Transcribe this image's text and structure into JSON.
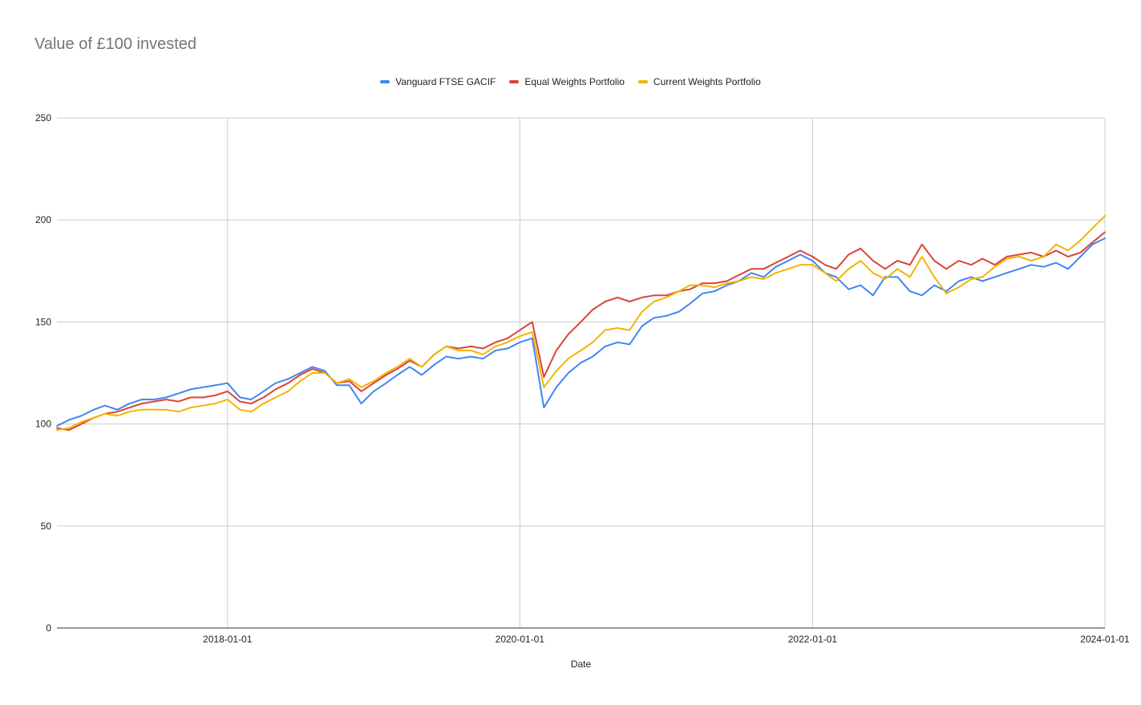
{
  "chart_data": {
    "type": "line",
    "title": "Value of £100 invested",
    "xlabel": "Date",
    "ylabel": "",
    "ylim": [
      0,
      250
    ],
    "yticks": [
      0,
      50,
      100,
      150,
      200,
      250
    ],
    "xlim": [
      "2016-11-01",
      "2024-01-01"
    ],
    "xticks": [
      "2018-01-01",
      "2020-01-01",
      "2022-01-01",
      "2024-01-01"
    ],
    "grid": true,
    "legend_position": "top",
    "series": [
      {
        "name": "Vanguard FTSE GACIF",
        "color": "#4285f4",
        "points": [
          [
            "2016-11-01",
            99
          ],
          [
            "2016-12-01",
            102
          ],
          [
            "2017-01-01",
            104
          ],
          [
            "2017-02-01",
            107
          ],
          [
            "2017-03-01",
            109
          ],
          [
            "2017-04-01",
            107
          ],
          [
            "2017-05-01",
            110
          ],
          [
            "2017-06-01",
            112
          ],
          [
            "2017-07-01",
            112
          ],
          [
            "2017-08-01",
            113
          ],
          [
            "2017-09-01",
            115
          ],
          [
            "2017-10-01",
            117
          ],
          [
            "2017-11-01",
            118
          ],
          [
            "2017-12-01",
            119
          ],
          [
            "2018-01-01",
            120
          ],
          [
            "2018-02-01",
            113
          ],
          [
            "2018-03-01",
            112
          ],
          [
            "2018-04-01",
            116
          ],
          [
            "2018-05-01",
            120
          ],
          [
            "2018-06-01",
            122
          ],
          [
            "2018-07-01",
            125
          ],
          [
            "2018-08-01",
            128
          ],
          [
            "2018-09-01",
            126
          ],
          [
            "2018-10-01",
            119
          ],
          [
            "2018-11-01",
            119
          ],
          [
            "2018-12-01",
            110
          ],
          [
            "2019-01-01",
            116
          ],
          [
            "2019-02-01",
            120
          ],
          [
            "2019-03-01",
            124
          ],
          [
            "2019-04-01",
            128
          ],
          [
            "2019-05-01",
            124
          ],
          [
            "2019-06-01",
            129
          ],
          [
            "2019-07-01",
            133
          ],
          [
            "2019-08-01",
            132
          ],
          [
            "2019-09-01",
            133
          ],
          [
            "2019-10-01",
            132
          ],
          [
            "2019-11-01",
            136
          ],
          [
            "2019-12-01",
            137
          ],
          [
            "2020-01-01",
            140
          ],
          [
            "2020-02-01",
            142
          ],
          [
            "2020-03-01",
            108
          ],
          [
            "2020-04-01",
            118
          ],
          [
            "2020-05-01",
            125
          ],
          [
            "2020-06-01",
            130
          ],
          [
            "2020-07-01",
            133
          ],
          [
            "2020-08-01",
            138
          ],
          [
            "2020-09-01",
            140
          ],
          [
            "2020-10-01",
            139
          ],
          [
            "2020-11-01",
            148
          ],
          [
            "2020-12-01",
            152
          ],
          [
            "2021-01-01",
            153
          ],
          [
            "2021-02-01",
            155
          ],
          [
            "2021-03-01",
            159
          ],
          [
            "2021-04-01",
            164
          ],
          [
            "2021-05-01",
            165
          ],
          [
            "2021-06-01",
            168
          ],
          [
            "2021-07-01",
            170
          ],
          [
            "2021-08-01",
            174
          ],
          [
            "2021-09-01",
            172
          ],
          [
            "2021-10-01",
            177
          ],
          [
            "2021-11-01",
            180
          ],
          [
            "2021-12-01",
            183
          ],
          [
            "2022-01-01",
            180
          ],
          [
            "2022-02-01",
            174
          ],
          [
            "2022-03-01",
            172
          ],
          [
            "2022-04-01",
            166
          ],
          [
            "2022-05-01",
            168
          ],
          [
            "2022-06-01",
            163
          ],
          [
            "2022-07-01",
            172
          ],
          [
            "2022-08-01",
            172
          ],
          [
            "2022-09-01",
            165
          ],
          [
            "2022-10-01",
            163
          ],
          [
            "2022-11-01",
            168
          ],
          [
            "2022-12-01",
            165
          ],
          [
            "2023-01-01",
            170
          ],
          [
            "2023-02-01",
            172
          ],
          [
            "2023-03-01",
            170
          ],
          [
            "2023-04-01",
            172
          ],
          [
            "2023-05-01",
            174
          ],
          [
            "2023-06-01",
            176
          ],
          [
            "2023-07-01",
            178
          ],
          [
            "2023-08-01",
            177
          ],
          [
            "2023-09-01",
            179
          ],
          [
            "2023-10-01",
            176
          ],
          [
            "2023-11-01",
            182
          ],
          [
            "2023-12-01",
            188
          ],
          [
            "2024-01-01",
            191
          ]
        ]
      },
      {
        "name": "Equal Weights Portfolio",
        "color": "#db4437",
        "points": [
          [
            "2016-11-01",
            98
          ],
          [
            "2016-12-01",
            97
          ],
          [
            "2017-01-01",
            100
          ],
          [
            "2017-02-01",
            103
          ],
          [
            "2017-03-01",
            105
          ],
          [
            "2017-04-01",
            106
          ],
          [
            "2017-05-01",
            108
          ],
          [
            "2017-06-01",
            110
          ],
          [
            "2017-07-01",
            111
          ],
          [
            "2017-08-01",
            112
          ],
          [
            "2017-09-01",
            111
          ],
          [
            "2017-10-01",
            113
          ],
          [
            "2017-11-01",
            113
          ],
          [
            "2017-12-01",
            114
          ],
          [
            "2018-01-01",
            116
          ],
          [
            "2018-02-01",
            111
          ],
          [
            "2018-03-01",
            110
          ],
          [
            "2018-04-01",
            113
          ],
          [
            "2018-05-01",
            117
          ],
          [
            "2018-06-01",
            120
          ],
          [
            "2018-07-01",
            124
          ],
          [
            "2018-08-01",
            127
          ],
          [
            "2018-09-01",
            125
          ],
          [
            "2018-10-01",
            120
          ],
          [
            "2018-11-01",
            121
          ],
          [
            "2018-12-01",
            116
          ],
          [
            "2019-01-01",
            120
          ],
          [
            "2019-02-01",
            124
          ],
          [
            "2019-03-01",
            127
          ],
          [
            "2019-04-01",
            131
          ],
          [
            "2019-05-01",
            128
          ],
          [
            "2019-06-01",
            134
          ],
          [
            "2019-07-01",
            138
          ],
          [
            "2019-08-01",
            137
          ],
          [
            "2019-09-01",
            138
          ],
          [
            "2019-10-01",
            137
          ],
          [
            "2019-11-01",
            140
          ],
          [
            "2019-12-01",
            142
          ],
          [
            "2020-01-01",
            146
          ],
          [
            "2020-02-01",
            150
          ],
          [
            "2020-03-01",
            123
          ],
          [
            "2020-04-01",
            136
          ],
          [
            "2020-05-01",
            144
          ],
          [
            "2020-06-01",
            150
          ],
          [
            "2020-07-01",
            156
          ],
          [
            "2020-08-01",
            160
          ],
          [
            "2020-09-01",
            162
          ],
          [
            "2020-10-01",
            160
          ],
          [
            "2020-11-01",
            162
          ],
          [
            "2020-12-01",
            163
          ],
          [
            "2021-01-01",
            163
          ],
          [
            "2021-02-01",
            165
          ],
          [
            "2021-03-01",
            166
          ],
          [
            "2021-04-01",
            169
          ],
          [
            "2021-05-01",
            169
          ],
          [
            "2021-06-01",
            170
          ],
          [
            "2021-07-01",
            173
          ],
          [
            "2021-08-01",
            176
          ],
          [
            "2021-09-01",
            176
          ],
          [
            "2021-10-01",
            179
          ],
          [
            "2021-11-01",
            182
          ],
          [
            "2021-12-01",
            185
          ],
          [
            "2022-01-01",
            182
          ],
          [
            "2022-02-01",
            178
          ],
          [
            "2022-03-01",
            176
          ],
          [
            "2022-04-01",
            183
          ],
          [
            "2022-05-01",
            186
          ],
          [
            "2022-06-01",
            180
          ],
          [
            "2022-07-01",
            176
          ],
          [
            "2022-08-01",
            180
          ],
          [
            "2022-09-01",
            178
          ],
          [
            "2022-10-01",
            188
          ],
          [
            "2022-11-01",
            180
          ],
          [
            "2022-12-01",
            176
          ],
          [
            "2023-01-01",
            180
          ],
          [
            "2023-02-01",
            178
          ],
          [
            "2023-03-01",
            181
          ],
          [
            "2023-04-01",
            178
          ],
          [
            "2023-05-01",
            182
          ],
          [
            "2023-06-01",
            183
          ],
          [
            "2023-07-01",
            184
          ],
          [
            "2023-08-01",
            182
          ],
          [
            "2023-09-01",
            185
          ],
          [
            "2023-10-01",
            182
          ],
          [
            "2023-11-01",
            184
          ],
          [
            "2023-12-01",
            189
          ],
          [
            "2024-01-01",
            194
          ]
        ]
      },
      {
        "name": "Current Weights Portfolio",
        "color": "#f4b400",
        "points": [
          [
            "2016-11-01",
            97
          ],
          [
            "2016-12-01",
            98
          ],
          [
            "2017-01-01",
            101
          ],
          [
            "2017-02-01",
            103
          ],
          [
            "2017-03-01",
            105
          ],
          [
            "2017-04-01",
            104
          ],
          [
            "2017-05-01",
            106
          ],
          [
            "2017-06-01",
            107
          ],
          [
            "2017-07-01",
            107
          ],
          [
            "2017-08-01",
            107
          ],
          [
            "2017-09-01",
            106
          ],
          [
            "2017-10-01",
            108
          ],
          [
            "2017-11-01",
            109
          ],
          [
            "2017-12-01",
            110
          ],
          [
            "2018-01-01",
            112
          ],
          [
            "2018-02-01",
            107
          ],
          [
            "2018-03-01",
            106
          ],
          [
            "2018-04-01",
            110
          ],
          [
            "2018-05-01",
            113
          ],
          [
            "2018-06-01",
            116
          ],
          [
            "2018-07-01",
            121
          ],
          [
            "2018-08-01",
            125
          ],
          [
            "2018-09-01",
            125
          ],
          [
            "2018-10-01",
            120
          ],
          [
            "2018-11-01",
            122
          ],
          [
            "2018-12-01",
            118
          ],
          [
            "2019-01-01",
            121
          ],
          [
            "2019-02-01",
            125
          ],
          [
            "2019-03-01",
            128
          ],
          [
            "2019-04-01",
            132
          ],
          [
            "2019-05-01",
            128
          ],
          [
            "2019-06-01",
            134
          ],
          [
            "2019-07-01",
            138
          ],
          [
            "2019-08-01",
            136
          ],
          [
            "2019-09-01",
            136
          ],
          [
            "2019-10-01",
            134
          ],
          [
            "2019-11-01",
            138
          ],
          [
            "2019-12-01",
            140
          ],
          [
            "2020-01-01",
            143
          ],
          [
            "2020-02-01",
            145
          ],
          [
            "2020-03-01",
            118
          ],
          [
            "2020-04-01",
            126
          ],
          [
            "2020-05-01",
            132
          ],
          [
            "2020-06-01",
            136
          ],
          [
            "2020-07-01",
            140
          ],
          [
            "2020-08-01",
            146
          ],
          [
            "2020-09-01",
            147
          ],
          [
            "2020-10-01",
            146
          ],
          [
            "2020-11-01",
            155
          ],
          [
            "2020-12-01",
            160
          ],
          [
            "2021-01-01",
            162
          ],
          [
            "2021-02-01",
            165
          ],
          [
            "2021-03-01",
            168
          ],
          [
            "2021-04-01",
            168
          ],
          [
            "2021-05-01",
            167
          ],
          [
            "2021-06-01",
            169
          ],
          [
            "2021-07-01",
            170
          ],
          [
            "2021-08-01",
            172
          ],
          [
            "2021-09-01",
            171
          ],
          [
            "2021-10-01",
            174
          ],
          [
            "2021-11-01",
            176
          ],
          [
            "2021-12-01",
            178
          ],
          [
            "2022-01-01",
            178
          ],
          [
            "2022-02-01",
            174
          ],
          [
            "2022-03-01",
            170
          ],
          [
            "2022-04-01",
            176
          ],
          [
            "2022-05-01",
            180
          ],
          [
            "2022-06-01",
            174
          ],
          [
            "2022-07-01",
            171
          ],
          [
            "2022-08-01",
            176
          ],
          [
            "2022-09-01",
            172
          ],
          [
            "2022-10-01",
            182
          ],
          [
            "2022-11-01",
            172
          ],
          [
            "2022-12-01",
            164
          ],
          [
            "2023-01-01",
            167
          ],
          [
            "2023-02-01",
            171
          ],
          [
            "2023-03-01",
            172
          ],
          [
            "2023-04-01",
            177
          ],
          [
            "2023-05-01",
            181
          ],
          [
            "2023-06-01",
            182
          ],
          [
            "2023-07-01",
            180
          ],
          [
            "2023-08-01",
            182
          ],
          [
            "2023-09-01",
            188
          ],
          [
            "2023-10-01",
            185
          ],
          [
            "2023-11-01",
            190
          ],
          [
            "2023-12-01",
            196
          ],
          [
            "2024-01-01",
            202
          ]
        ]
      }
    ]
  }
}
